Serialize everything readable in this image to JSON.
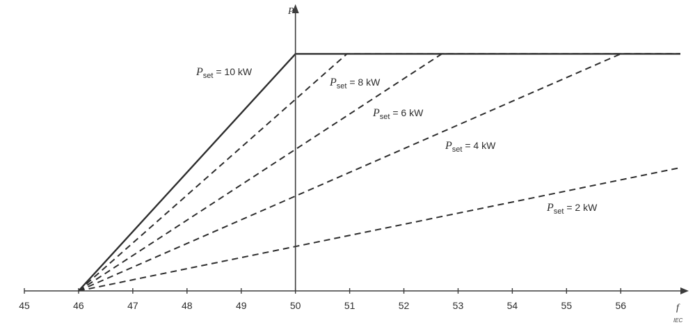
{
  "chart_data": {
    "type": "line",
    "xlabel": "f",
    "ylabel": "P",
    "x_ticks": [
      45,
      46,
      47,
      48,
      49,
      50,
      51,
      52,
      53,
      54,
      55,
      56
    ],
    "xlim": [
      45,
      57.1
    ],
    "ylim": [
      0,
      10.1
    ],
    "grid": false,
    "legend": "none",
    "series": [
      {
        "name": "P_set = 10 kW",
        "label_symbol": "P",
        "label_sub": "set",
        "label_rest": " = 10 kW",
        "style": "solid",
        "x": [
          46,
          50,
          57.1
        ],
        "y": [
          0,
          10,
          10
        ]
      },
      {
        "name": "P_set = 8 kW",
        "label_symbol": "P",
        "label_sub": "set",
        "label_rest": " = 8 kW",
        "style": "dashed",
        "x": [
          46,
          50.95,
          57.1
        ],
        "y": [
          0,
          10,
          10
        ]
      },
      {
        "name": "P_set = 6 kW",
        "label_symbol": "P",
        "label_sub": "set",
        "label_rest": " = 6 kW",
        "style": "dashed",
        "x": [
          46,
          52.7,
          57.1
        ],
        "y": [
          0,
          10,
          10
        ]
      },
      {
        "name": "P_set = 4 kW",
        "label_symbol": "P",
        "label_sub": "set",
        "label_rest": " = 4 kW",
        "style": "dashed",
        "x": [
          46,
          56,
          57.1
        ],
        "y": [
          0,
          10,
          10
        ]
      },
      {
        "name": "P_set = 2 kW",
        "label_symbol": "P",
        "label_sub": "set",
        "label_rest": " = 2 kW",
        "style": "dashed",
        "x": [
          46,
          57.1
        ],
        "y": [
          0,
          5.2
        ]
      }
    ],
    "watermark": "IEC",
    "colors": {
      "line": "#2d2d2d",
      "axis": "#3c3c3c"
    }
  }
}
